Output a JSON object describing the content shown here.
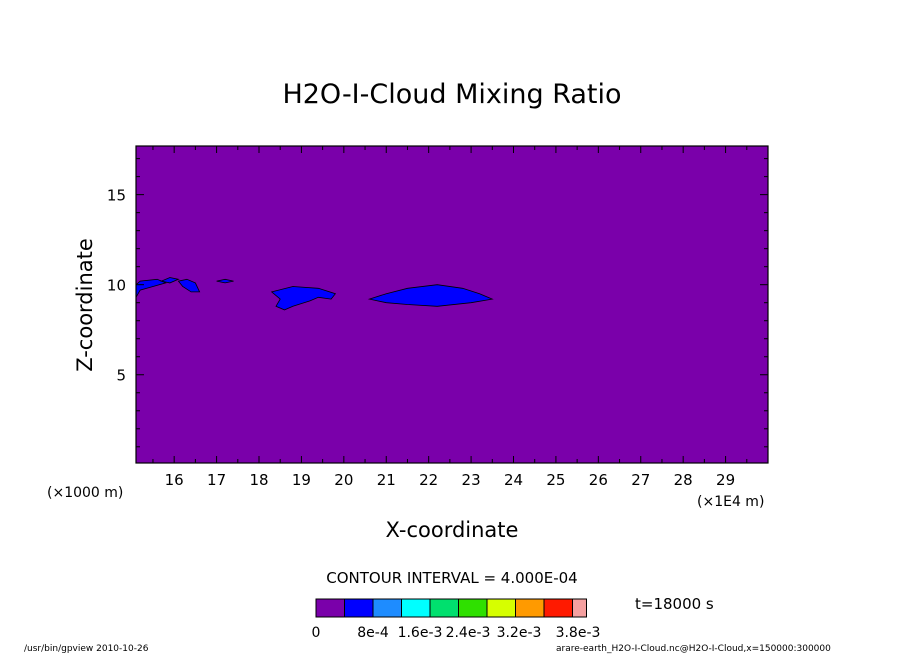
{
  "chart_data": {
    "type": "contour",
    "title": "H2O-I-Cloud Mixing Ratio",
    "xlabel": "X-coordinate",
    "ylabel": "Z-coordinate",
    "x_unit_label": "(×1E4 m)",
    "y_unit_label": "(×1000 m)",
    "xlim": [
      15.1,
      30.0
    ],
    "ylim": [
      0.1,
      17.7
    ],
    "x_ticks": [
      16,
      17,
      18,
      19,
      20,
      21,
      22,
      23,
      24,
      25,
      26,
      27,
      28,
      29
    ],
    "y_ticks": [
      5,
      10,
      15
    ],
    "contour_interval_label": "CONTOUR INTERVAL = 4.000E-04",
    "time_label": "t=18000 s",
    "background_level_color": "#7a00aa",
    "cloud_level_color": "#0000ff",
    "colorbar": {
      "colors": [
        "#7a00aa",
        "#0000ff",
        "#1e8cff",
        "#00ffff",
        "#00e06e",
        "#2fe000",
        "#d6ff00",
        "#ff9a00",
        "#ff1a00",
        "#f5a0a0"
      ],
      "labels": [
        "0",
        "8e-4",
        "1.6e-3",
        "2.4e-3",
        "3.2e-3",
        "3.8e-3"
      ]
    },
    "cloud_regions": [
      [
        [
          15.1,
          9.3
        ],
        [
          15.2,
          9.7
        ],
        [
          15.5,
          9.9
        ],
        [
          15.8,
          10.1
        ],
        [
          15.6,
          10.3
        ],
        [
          15.2,
          10.2
        ],
        [
          15.1,
          10.0
        ]
      ],
      [
        [
          15.7,
          10.2
        ],
        [
          15.9,
          10.4
        ],
        [
          16.1,
          10.3
        ],
        [
          15.9,
          10.1
        ]
      ],
      [
        [
          16.1,
          10.2
        ],
        [
          16.3,
          10.3
        ],
        [
          16.5,
          10.1
        ],
        [
          16.6,
          9.6
        ],
        [
          16.4,
          9.6
        ],
        [
          16.2,
          9.9
        ]
      ],
      [
        [
          17.0,
          10.2
        ],
        [
          17.2,
          10.3
        ],
        [
          17.4,
          10.2
        ],
        [
          17.2,
          10.1
        ]
      ],
      [
        [
          18.3,
          9.6
        ],
        [
          18.8,
          9.9
        ],
        [
          19.4,
          9.8
        ],
        [
          19.8,
          9.5
        ],
        [
          19.7,
          9.2
        ],
        [
          19.4,
          9.3
        ],
        [
          19.2,
          9.1
        ],
        [
          18.8,
          8.8
        ],
        [
          18.6,
          8.6
        ],
        [
          18.4,
          8.8
        ],
        [
          18.5,
          9.2
        ]
      ],
      [
        [
          20.6,
          9.2
        ],
        [
          21.0,
          9.5
        ],
        [
          21.5,
          9.8
        ],
        [
          22.2,
          10.0
        ],
        [
          22.8,
          9.8
        ],
        [
          23.2,
          9.5
        ],
        [
          23.5,
          9.2
        ],
        [
          23.0,
          9.0
        ],
        [
          22.2,
          8.8
        ],
        [
          21.5,
          8.9
        ],
        [
          21.0,
          9.0
        ]
      ]
    ],
    "footer_left": "/usr/bin/gpview  2010-10-26",
    "footer_right": "arare-earth_H2O-I-Cloud.nc@H2O-I-Cloud,x=150000:300000"
  }
}
